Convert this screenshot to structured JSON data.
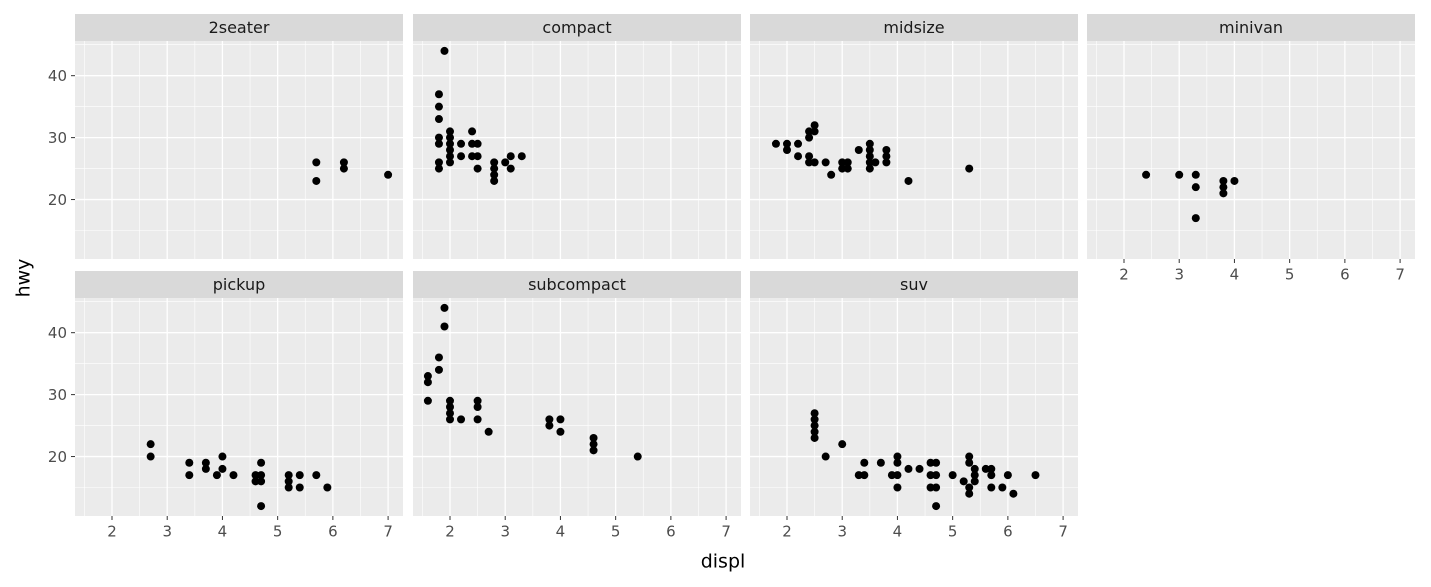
{
  "chart_data": {
    "type": "scatter",
    "xlabel": "displ",
    "ylabel": "hwy",
    "xlim": [
      1.33,
      7.27
    ],
    "ylim": [
      10.4,
      45.6
    ],
    "xticks": [
      2,
      3,
      4,
      5,
      6,
      7
    ],
    "yticks": [
      20,
      30,
      40
    ],
    "xminor": [
      1.5,
      2.5,
      3.5,
      4.5,
      5.5,
      6.5
    ],
    "yminor": [
      15,
      25,
      35,
      45
    ],
    "grid": true,
    "color": "#000000",
    "facets": [
      {
        "name": "2seater",
        "x": [
          5.7,
          5.7,
          6.2,
          6.2,
          7.0
        ],
        "y": [
          26,
          23,
          26,
          25,
          24
        ]
      },
      {
        "name": "compact",
        "x": [
          1.9,
          1.8,
          1.8,
          1.8,
          1.8,
          1.8,
          1.8,
          1.8,
          2.0,
          2.0,
          2.0,
          2.0,
          2.0,
          2.0,
          2.2,
          2.2,
          2.4,
          2.4,
          2.4,
          2.5,
          2.5,
          2.5,
          2.8,
          2.8,
          2.8,
          2.8,
          3.0,
          3.1,
          3.1,
          3.3
        ],
        "y": [
          44,
          37,
          35,
          33,
          30,
          29,
          26,
          25,
          31,
          30,
          29,
          28,
          27,
          26,
          29,
          27,
          31,
          29,
          27,
          29,
          27,
          25,
          26,
          25,
          24,
          23,
          26,
          27,
          25,
          27
        ]
      },
      {
        "name": "midsize",
        "x": [
          1.8,
          2.0,
          2.0,
          2.2,
          2.2,
          2.4,
          2.4,
          2.4,
          2.4,
          2.5,
          2.5,
          2.5,
          2.7,
          2.8,
          3.0,
          3.0,
          3.1,
          3.1,
          3.3,
          3.5,
          3.5,
          3.5,
          3.5,
          3.5,
          3.6,
          3.8,
          3.8,
          3.8,
          4.2,
          5.3
        ],
        "y": [
          29,
          29,
          28,
          29,
          27,
          31,
          30,
          27,
          26,
          32,
          31,
          26,
          26,
          24,
          26,
          25,
          26,
          25,
          28,
          29,
          28,
          27,
          26,
          25,
          26,
          28,
          27,
          26,
          23,
          25
        ]
      },
      {
        "name": "minivan",
        "x": [
          2.4,
          3.0,
          3.3,
          3.3,
          3.3,
          3.8,
          3.8,
          3.8,
          4.0
        ],
        "y": [
          24,
          24,
          24,
          22,
          17,
          23,
          22,
          21,
          23
        ]
      },
      {
        "name": "pickup",
        "x": [
          2.7,
          2.7,
          3.4,
          3.4,
          3.7,
          3.7,
          3.9,
          4.0,
          4.0,
          4.2,
          4.6,
          4.6,
          4.7,
          4.7,
          4.7,
          4.7,
          5.2,
          5.2,
          5.2,
          5.4,
          5.4,
          5.7,
          5.9
        ],
        "y": [
          22,
          20,
          19,
          17,
          19,
          18,
          17,
          20,
          18,
          17,
          17,
          16,
          19,
          17,
          16,
          12,
          17,
          16,
          15,
          17,
          15,
          17,
          15
        ]
      },
      {
        "name": "subcompact",
        "x": [
          1.6,
          1.6,
          1.6,
          1.8,
          1.8,
          1.9,
          1.9,
          2.0,
          2.0,
          2.0,
          2.0,
          2.2,
          2.5,
          2.5,
          2.5,
          2.7,
          3.8,
          3.8,
          4.0,
          4.0,
          4.6,
          4.6,
          4.6,
          5.4
        ],
        "y": [
          33,
          32,
          29,
          36,
          34,
          44,
          41,
          29,
          28,
          27,
          26,
          26,
          29,
          28,
          26,
          24,
          26,
          25,
          26,
          24,
          23,
          22,
          21,
          20
        ]
      },
      {
        "name": "suv",
        "x": [
          2.5,
          2.5,
          2.5,
          2.5,
          2.5,
          2.7,
          3.0,
          3.3,
          3.4,
          3.4,
          3.7,
          3.9,
          4.0,
          4.0,
          4.0,
          4.0,
          4.2,
          4.4,
          4.6,
          4.6,
          4.6,
          4.7,
          4.7,
          4.7,
          4.7,
          5.0,
          5.2,
          5.3,
          5.3,
          5.3,
          5.3,
          5.4,
          5.4,
          5.4,
          5.6,
          5.7,
          5.7,
          5.7,
          5.9,
          6.0,
          6.1,
          6.5
        ],
        "y": [
          27,
          26,
          25,
          24,
          23,
          20,
          22,
          17,
          19,
          17,
          19,
          17,
          20,
          19,
          17,
          15,
          18,
          18,
          19,
          17,
          15,
          19,
          17,
          15,
          12,
          17,
          16,
          20,
          19,
          15,
          14,
          18,
          17,
          16,
          18,
          18,
          17,
          15,
          15,
          17,
          14,
          17
        ]
      }
    ]
  }
}
